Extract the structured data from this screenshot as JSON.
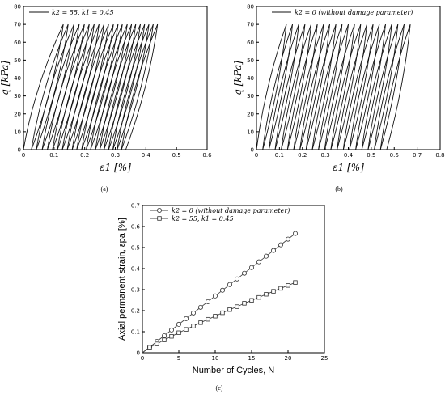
{
  "chart_data": [
    {
      "type": "line",
      "panel": "a",
      "caption": "(a)",
      "ylabel": "q [kPa]",
      "xlabel": "ε1 [%]",
      "xlim": [
        0,
        0.6
      ],
      "ylim": [
        0,
        80
      ],
      "xticks": [
        "0",
        "0.1",
        "0.2",
        "0.3",
        "0.4",
        "0.5",
        "0.6"
      ],
      "yticks": [
        "0",
        "10",
        "20",
        "30",
        "40",
        "50",
        "60",
        "70",
        "80"
      ],
      "legend": "k2 = 55, k1 = 0.45",
      "legend_position": "top-left",
      "peak_q": 70,
      "cycles": 21,
      "cumulative_permanent_strain": [
        0.026,
        0.042,
        0.061,
        0.078,
        0.095,
        0.111,
        0.127,
        0.143,
        0.159,
        0.174,
        0.19,
        0.205,
        0.219,
        0.235,
        0.249,
        0.263,
        0.278,
        0.292,
        0.306,
        0.32,
        0.334
      ],
      "peak_strain": [
        0.13,
        0.146,
        0.165,
        0.182,
        0.199,
        0.215,
        0.231,
        0.247,
        0.263,
        0.278,
        0.294,
        0.309,
        0.323,
        0.339,
        0.353,
        0.367,
        0.382,
        0.396,
        0.41,
        0.424,
        0.438
      ]
    },
    {
      "type": "line",
      "panel": "b",
      "caption": "(b)",
      "ylabel": "q [kPa]",
      "xlabel": "ε1 [%]",
      "xlim": [
        0,
        0.8
      ],
      "ylim": [
        0,
        80
      ],
      "xticks": [
        "0",
        "0.1",
        "0.2",
        "0.3",
        "0.4",
        "0.5",
        "0.6",
        "0.7",
        "0.8"
      ],
      "yticks": [
        "0",
        "10",
        "20",
        "30",
        "40",
        "50",
        "60",
        "70",
        "80"
      ],
      "legend": "k2 = 0 (without damage parameter)",
      "legend_position": "top-left",
      "peak_q": 70,
      "cycles": 21,
      "cumulative_permanent_strain": [
        0.027,
        0.054,
        0.081,
        0.108,
        0.135,
        0.162,
        0.189,
        0.216,
        0.243,
        0.27,
        0.297,
        0.324,
        0.351,
        0.378,
        0.405,
        0.432,
        0.459,
        0.486,
        0.513,
        0.54,
        0.567
      ],
      "peak_strain": [
        0.13,
        0.157,
        0.184,
        0.211,
        0.238,
        0.265,
        0.292,
        0.319,
        0.346,
        0.373,
        0.4,
        0.427,
        0.454,
        0.481,
        0.508,
        0.535,
        0.562,
        0.589,
        0.616,
        0.643,
        0.67
      ]
    },
    {
      "type": "line",
      "panel": "c",
      "caption": "(c)",
      "ylabel": "Axial permanent strain, εpa [%]",
      "xlabel": "Number of Cycles, N",
      "xlim": [
        0,
        25
      ],
      "ylim": [
        0,
        0.7
      ],
      "xticks": [
        "0",
        "5",
        "10",
        "15",
        "20",
        "25"
      ],
      "yticks": [
        "0",
        "0.1",
        "0.2",
        "0.3",
        "0.4",
        "0.5",
        "0.6",
        "0.7"
      ],
      "legend_position": "top-left",
      "x": [
        1,
        2,
        3,
        4,
        5,
        6,
        7,
        8,
        9,
        10,
        11,
        12,
        13,
        14,
        15,
        16,
        17,
        18,
        19,
        20,
        21
      ],
      "series": [
        {
          "name": "k2 = 0 (without damage parameter)",
          "marker": "circle",
          "values": [
            0.027,
            0.054,
            0.081,
            0.108,
            0.135,
            0.162,
            0.189,
            0.216,
            0.243,
            0.27,
            0.297,
            0.324,
            0.351,
            0.378,
            0.405,
            0.432,
            0.459,
            0.486,
            0.513,
            0.54,
            0.567
          ]
        },
        {
          "name": "k2 = 55, k1 = 0.45",
          "marker": "square",
          "values": [
            0.026,
            0.042,
            0.061,
            0.078,
            0.095,
            0.111,
            0.127,
            0.143,
            0.159,
            0.174,
            0.19,
            0.205,
            0.219,
            0.235,
            0.249,
            0.263,
            0.278,
            0.292,
            0.306,
            0.32,
            0.334
          ]
        }
      ]
    }
  ]
}
